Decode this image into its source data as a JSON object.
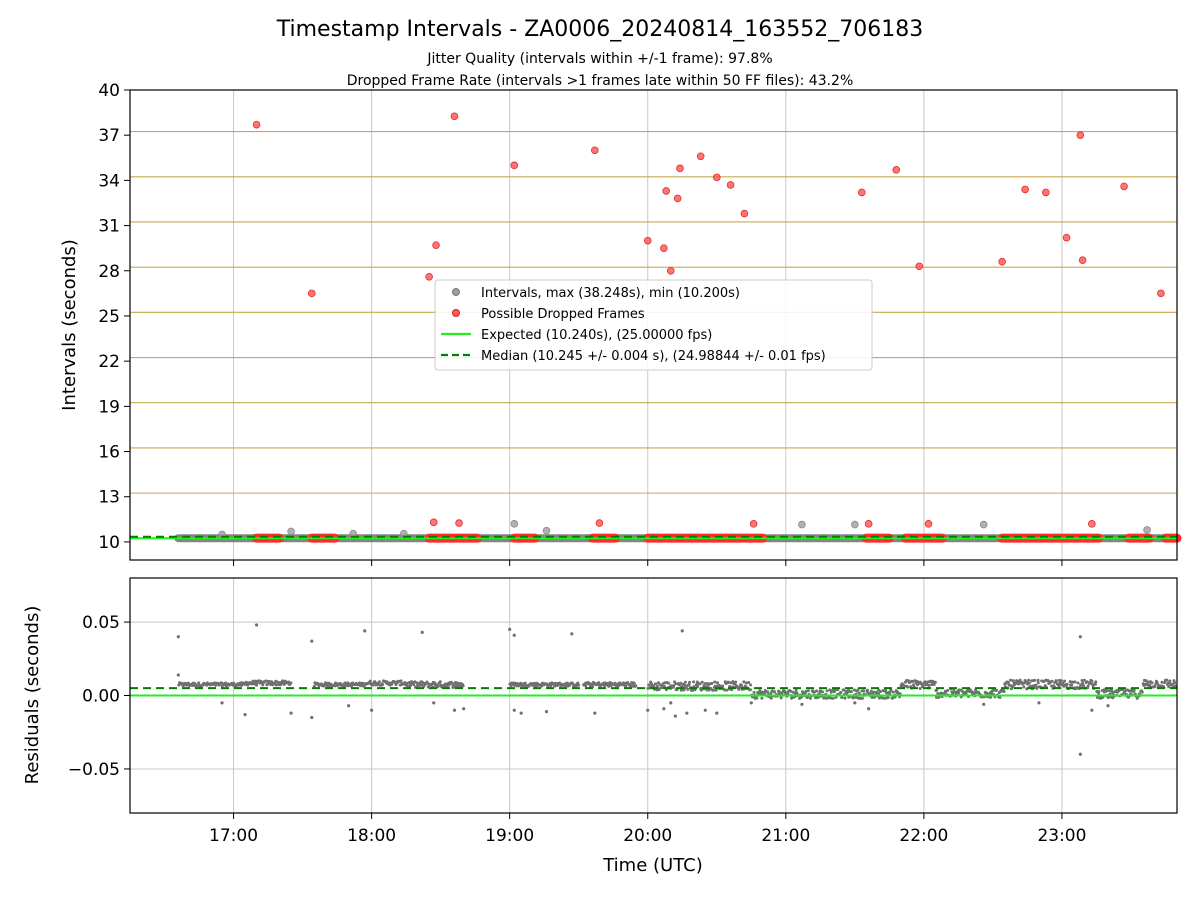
{
  "title": "Timestamp Intervals - ZA0006_20240814_163552_706183",
  "subtitle_lines": [
    "Jitter Quality (intervals within +/-1 frame): 97.8%",
    "Dropped Frame Rate (intervals >1 frames late within 50 FF files): 43.2%"
  ],
  "colors": {
    "intervals": "#9e9e9e",
    "dropped": "#ff2a2a",
    "expected": "#22ee22",
    "median": "#008000",
    "residuals": "#707070",
    "frame_lines": "#c8a850",
    "grid": "#c8c8c8"
  },
  "chart_data": [
    {
      "type": "scatter",
      "panel": "top",
      "xlabel": "",
      "ylabel": "Intervals (seconds)",
      "x_range": [
        "16:15",
        "23:50"
      ],
      "ylim": [
        8.8,
        40
      ],
      "y_ticks": [
        10,
        13,
        16,
        19,
        22,
        25,
        28,
        31,
        34,
        37,
        40
      ],
      "x_ticks": [
        "17:00",
        "18:00",
        "19:00",
        "20:00",
        "21:00",
        "22:00",
        "23:00"
      ],
      "grid": "vertical",
      "frame_multiple_lines": [
        10.24,
        13.24,
        16.24,
        19.24,
        22.24,
        25.24,
        28.24,
        31.24,
        34.24,
        37.24
      ],
      "legend_position": "center",
      "legend": [
        {
          "label": "Intervals, max (38.248s), min (10.200s)",
          "marker": "dot",
          "color": "#9e9e9e"
        },
        {
          "label": "Possible Dropped Frames",
          "marker": "dot",
          "color": "#ff2a2a"
        },
        {
          "label": "Expected (10.240s), (25.00000 fps)",
          "marker": "solid-line",
          "color": "#22ee22"
        },
        {
          "label": "Median (10.245 +/- 0.004 s), (24.98844 +/- 0.01 fps)",
          "marker": "dashed-line",
          "color": "#008000"
        }
      ],
      "expected_value": 10.24,
      "median_value": 10.245,
      "base_interval_segments": [
        {
          "name": "Intervals",
          "from": "16:36",
          "to": "23:50",
          "y": 10.245
        },
        {
          "name": "Possible Dropped Frames",
          "from": "17:10",
          "to": "17:20",
          "y": 10.25
        },
        {
          "name": "Possible Dropped Frames",
          "from": "17:34",
          "to": "17:44",
          "y": 10.25
        },
        {
          "name": "Possible Dropped Frames",
          "from": "18:25",
          "to": "18:46",
          "y": 10.25
        },
        {
          "name": "Possible Dropped Frames",
          "from": "19:02",
          "to": "19:11",
          "y": 10.25
        },
        {
          "name": "Possible Dropped Frames",
          "from": "19:36",
          "to": "19:46",
          "y": 10.25
        },
        {
          "name": "Possible Dropped Frames",
          "from": "20:00",
          "to": "20:50",
          "y": 10.25
        },
        {
          "name": "Possible Dropped Frames",
          "from": "21:35",
          "to": "21:45",
          "y": 10.25
        },
        {
          "name": "Possible Dropped Frames",
          "from": "21:52",
          "to": "22:08",
          "y": 10.25
        },
        {
          "name": "Possible Dropped Frames",
          "from": "22:34",
          "to": "23:16",
          "y": 10.25
        },
        {
          "name": "Possible Dropped Frames",
          "from": "23:29",
          "to": "23:38",
          "y": 10.25
        },
        {
          "name": "Possible Dropped Frames",
          "from": "23:45",
          "to": "23:50",
          "y": 10.25
        }
      ],
      "series": [
        {
          "name": "Intervals",
          "points": [
            [
              "16:55",
              10.5
            ],
            [
              "17:25",
              10.7
            ],
            [
              "17:52",
              10.55
            ],
            [
              "18:14",
              10.55
            ],
            [
              "19:02",
              11.2
            ],
            [
              "19:16",
              10.75
            ],
            [
              "21:07",
              11.15
            ],
            [
              "21:30",
              11.15
            ],
            [
              "22:26",
              11.15
            ],
            [
              "23:37",
              10.8
            ]
          ]
        },
        {
          "name": "Possible Dropped Frames",
          "points": [
            [
              "17:10",
              37.7
            ],
            [
              "17:34",
              26.5
            ],
            [
              "18:25",
              27.6
            ],
            [
              "18:27",
              11.3
            ],
            [
              "18:28",
              29.7
            ],
            [
              "18:36",
              38.25
            ],
            [
              "18:38",
              11.25
            ],
            [
              "19:02",
              35.0
            ],
            [
              "19:37",
              36.0
            ],
            [
              "19:39",
              11.25
            ],
            [
              "20:00",
              30.0
            ],
            [
              "20:07",
              29.5
            ],
            [
              "20:08",
              33.3
            ],
            [
              "20:10",
              28.0
            ],
            [
              "20:13",
              32.8
            ],
            [
              "20:14",
              34.8
            ],
            [
              "20:23",
              35.6
            ],
            [
              "20:30",
              34.2
            ],
            [
              "20:36",
              33.7
            ],
            [
              "20:42",
              31.8
            ],
            [
              "20:46",
              11.2
            ],
            [
              "21:33",
              33.2
            ],
            [
              "21:36",
              11.2
            ],
            [
              "21:48",
              34.7
            ],
            [
              "21:58",
              28.3
            ],
            [
              "22:02",
              11.2
            ],
            [
              "22:34",
              28.6
            ],
            [
              "22:44",
              33.4
            ],
            [
              "22:53",
              33.2
            ],
            [
              "23:02",
              30.2
            ],
            [
              "23:08",
              37.0
            ],
            [
              "23:09",
              28.7
            ],
            [
              "23:13",
              11.2
            ],
            [
              "23:27",
              33.6
            ],
            [
              "23:43",
              26.5
            ]
          ]
        }
      ]
    },
    {
      "type": "scatter",
      "panel": "bottom",
      "xlabel": "Time (UTC)",
      "ylabel": "Residuals (seconds)",
      "x_range": [
        "16:15",
        "23:50"
      ],
      "ylim": [
        -0.08,
        0.08
      ],
      "y_ticks": [
        0.05,
        0.0,
        -0.05
      ],
      "y_tick_labels": [
        "0.05",
        "0.00",
        "−0.05"
      ],
      "x_ticks": [
        "17:00",
        "18:00",
        "19:00",
        "20:00",
        "21:00",
        "22:00",
        "23:00"
      ],
      "grid": "both",
      "expected_value": 0.0,
      "median_value": 0.005,
      "residual_runs": [
        {
          "from": "16:36",
          "to": "17:05",
          "level": 0.0075,
          "spread": 0.0012
        },
        {
          "from": "17:05",
          "to": "17:25",
          "level": 0.0085,
          "spread": 0.0015
        },
        {
          "from": "17:35",
          "to": "17:57",
          "level": 0.0075,
          "spread": 0.0012
        },
        {
          "from": "17:57",
          "to": "18:15",
          "level": 0.0085,
          "spread": 0.0015
        },
        {
          "from": "18:15",
          "to": "18:40",
          "level": 0.0075,
          "spread": 0.002
        },
        {
          "from": "19:00",
          "to": "19:30",
          "level": 0.0075,
          "spread": 0.0012
        },
        {
          "from": "19:32",
          "to": "19:55",
          "level": 0.0075,
          "spread": 0.0015
        },
        {
          "from": "20:00",
          "to": "20:45",
          "level": 0.0065,
          "spread": 0.003
        },
        {
          "from": "20:45",
          "to": "21:50",
          "level": 0.001,
          "spread": 0.003
        },
        {
          "from": "21:50",
          "to": "22:05",
          "level": 0.0075,
          "spread": 0.003
        },
        {
          "from": "22:05",
          "to": "22:35",
          "level": 0.0015,
          "spread": 0.003
        },
        {
          "from": "22:35",
          "to": "23:15",
          "level": 0.0075,
          "spread": 0.003
        },
        {
          "from": "23:15",
          "to": "23:35",
          "level": 0.001,
          "spread": 0.003
        },
        {
          "from": "23:35",
          "to": "23:50",
          "level": 0.008,
          "spread": 0.003
        }
      ],
      "series": [
        {
          "name": "Residuals",
          "points": [
            [
              "16:36",
              0.04
            ],
            [
              "16:36",
              0.014
            ],
            [
              "16:55",
              -0.005
            ],
            [
              "17:05",
              -0.013
            ],
            [
              "17:10",
              0.048
            ],
            [
              "17:25",
              -0.012
            ],
            [
              "17:34",
              -0.015
            ],
            [
              "17:34",
              0.037
            ],
            [
              "17:50",
              -0.007
            ],
            [
              "17:57",
              0.044
            ],
            [
              "18:00",
              -0.01
            ],
            [
              "18:22",
              0.043
            ],
            [
              "18:27",
              -0.005
            ],
            [
              "18:36",
              -0.01
            ],
            [
              "18:40",
              -0.009
            ],
            [
              "19:00",
              0.045
            ],
            [
              "19:02",
              0.041
            ],
            [
              "19:02",
              -0.01
            ],
            [
              "19:05",
              -0.012
            ],
            [
              "19:16",
              -0.011
            ],
            [
              "19:27",
              0.042
            ],
            [
              "19:37",
              -0.012
            ],
            [
              "20:00",
              -0.01
            ],
            [
              "20:07",
              -0.009
            ],
            [
              "20:10",
              -0.005
            ],
            [
              "20:12",
              -0.014
            ],
            [
              "20:15",
              0.044
            ],
            [
              "20:17",
              -0.012
            ],
            [
              "20:25",
              -0.01
            ],
            [
              "20:30",
              -0.012
            ],
            [
              "20:45",
              -0.005
            ],
            [
              "21:07",
              -0.006
            ],
            [
              "21:30",
              -0.005
            ],
            [
              "21:36",
              -0.009
            ],
            [
              "22:26",
              -0.006
            ],
            [
              "22:50",
              -0.005
            ],
            [
              "23:08",
              0.04
            ],
            [
              "23:08",
              -0.04
            ],
            [
              "23:13",
              -0.01
            ],
            [
              "23:20",
              -0.007
            ]
          ]
        }
      ]
    }
  ]
}
